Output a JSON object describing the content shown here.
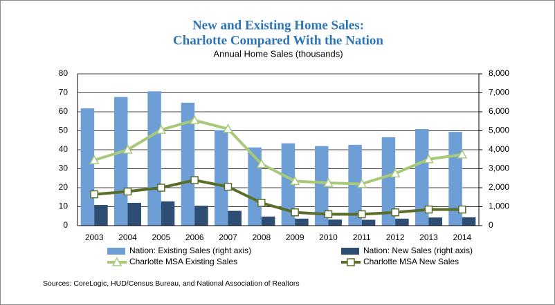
{
  "chart_data": {
    "type": "bar-line",
    "title": [
      "New and Existing Home Sales:",
      "Charlotte Compared With the Nation"
    ],
    "subtitle": "Annual Home Sales (thousands)",
    "source": "Sources: CoreLogic, HUD/Census Bureau, and National Association of Realtors",
    "categories": [
      "2003",
      "2004",
      "2005",
      "2006",
      "2007",
      "2008",
      "2009",
      "2010",
      "2011",
      "2012",
      "2013",
      "2014"
    ],
    "series": [
      {
        "name": "Nation: Existing Sales (right axis)",
        "color": "#6d9fd6",
        "kind": "bar",
        "axis": "y2",
        "values": [
          6180,
          6780,
          7080,
          6480,
          5030,
          4120,
          4340,
          4190,
          4260,
          4660,
          5090,
          4940
        ]
      },
      {
        "name": "Nation: New Sales (right axis)",
        "color": "#2e4d73",
        "kind": "bar",
        "axis": "y2",
        "values": [
          1090,
          1200,
          1280,
          1050,
          780,
          480,
          370,
          320,
          310,
          370,
          430,
          440
        ]
      },
      {
        "name": "Charlotte MSA Existing Sales",
        "color": "#a8c97a",
        "kind": "line",
        "marker": "triangle",
        "values": [
          34.5,
          40,
          50.5,
          55.5,
          51,
          32.5,
          23.5,
          22.5,
          22,
          27.5,
          35,
          37.5
        ]
      },
      {
        "name": "Charlotte MSA New Sales",
        "color": "#5a6e2a",
        "kind": "line",
        "marker": "square",
        "values": [
          16.5,
          18,
          20,
          24,
          20.5,
          12,
          7,
          6,
          6,
          7,
          8.5,
          8.5
        ]
      }
    ],
    "ylim": [
      0,
      80
    ],
    "yticks": [
      0,
      10,
      20,
      30,
      40,
      50,
      60,
      70,
      80
    ],
    "y2lim": [
      0,
      8000
    ],
    "y2ticks": [
      0,
      {
        "value": 1000,
        "label": "1,000"
      },
      {
        "value": 2000,
        "label": "2,000"
      },
      {
        "value": 3000,
        "label": "3,000"
      },
      {
        "value": 4000,
        "label": "4,000"
      },
      {
        "value": 5000,
        "label": "5,000"
      },
      {
        "value": 6000,
        "label": "6,000"
      },
      {
        "value": 7000,
        "label": "7,000"
      },
      {
        "value": 8000,
        "label": "8,000"
      }
    ],
    "grid": true
  }
}
